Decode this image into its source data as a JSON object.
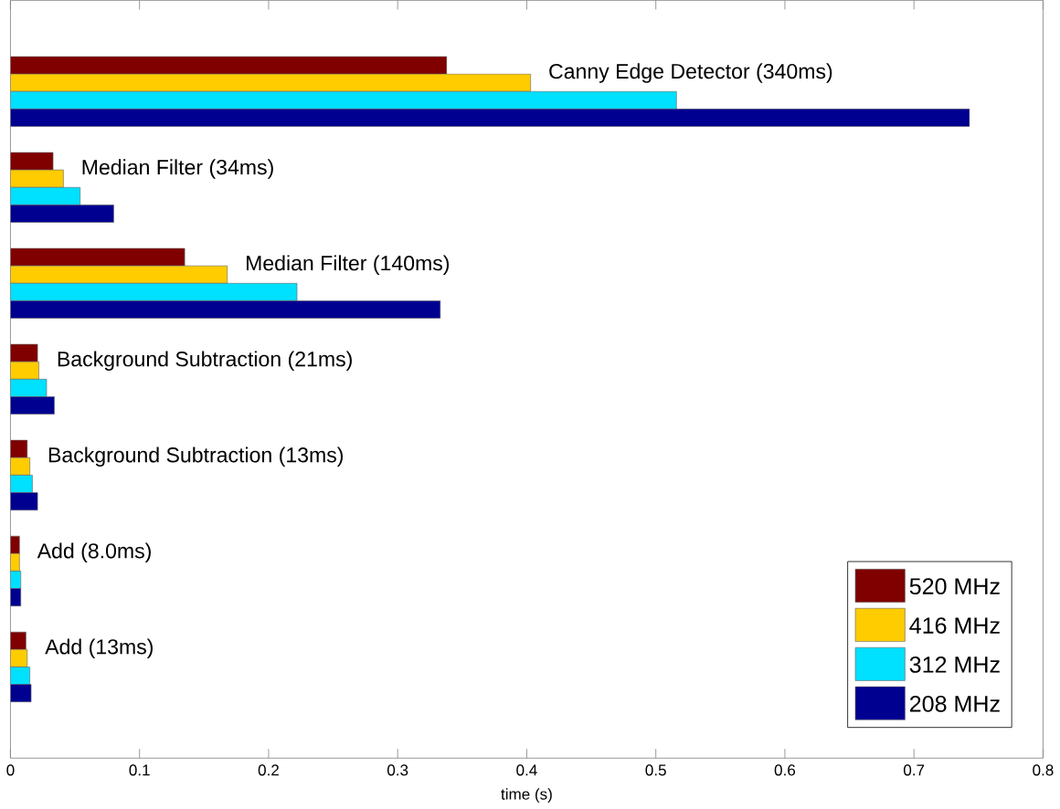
{
  "chart_data": {
    "type": "bar",
    "orientation": "horizontal",
    "xlabel": "time (s)",
    "categories": [
      "Canny Edge Detector (340ms)",
      "Median Filter (34ms)",
      "Median Filter (140ms)",
      "Background Subtraction (21ms)",
      "Background Subtraction (13ms)",
      "Add (8.0ms)",
      "Add (13ms)"
    ],
    "series": [
      {
        "name": "520 MHz",
        "color": "#800000",
        "values": [
          0.338,
          0.033,
          0.135,
          0.021,
          0.013,
          0.007,
          0.012
        ]
      },
      {
        "name": "416 MHz",
        "color": "#ffcc00",
        "values": [
          0.403,
          0.041,
          0.168,
          0.022,
          0.015,
          0.007,
          0.013
        ]
      },
      {
        "name": "312 MHz",
        "color": "#00e0ff",
        "values": [
          0.516,
          0.054,
          0.222,
          0.028,
          0.017,
          0.008,
          0.015
        ]
      },
      {
        "name": "208 MHz",
        "color": "#000090",
        "values": [
          0.743,
          0.08,
          0.333,
          0.034,
          0.021,
          0.008,
          0.016
        ]
      }
    ],
    "xlim": [
      0,
      0.8
    ],
    "xticks": [
      0,
      0.1,
      0.2,
      0.3,
      0.4,
      0.5,
      0.6,
      0.7,
      0.8
    ],
    "tick_labels": "x",
    "legend": "bottom right",
    "grid": false
  }
}
